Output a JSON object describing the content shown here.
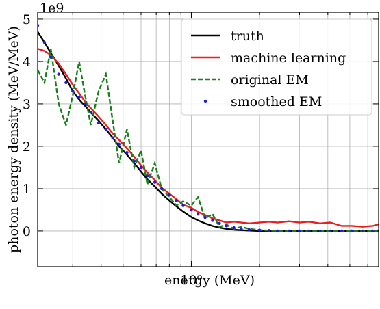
{
  "chart_data": {
    "type": "line",
    "xlabel": "energy (MeV)",
    "ylabel": "photon energy density (MeV/MeV)",
    "y_offset_text": "1e9",
    "xscale": "log",
    "xlim": [
      0.21,
      6.7
    ],
    "ylim": [
      -0.84,
      5.16
    ],
    "xticks": [
      {
        "value": 1,
        "label": "10⁰"
      }
    ],
    "xminorticks": [
      0.3,
      0.4,
      0.5,
      0.6,
      0.7,
      0.8,
      0.9,
      2,
      3,
      4,
      5,
      6
    ],
    "yticks": [
      0,
      1,
      2,
      3,
      4,
      5
    ],
    "grid": true,
    "legend": "upper right",
    "x": [
      0.21,
      0.225,
      0.24,
      0.26,
      0.28,
      0.3,
      0.32,
      0.34,
      0.36,
      0.39,
      0.42,
      0.45,
      0.48,
      0.52,
      0.56,
      0.6,
      0.64,
      0.69,
      0.74,
      0.8,
      0.86,
      0.92,
      1.0,
      1.07,
      1.15,
      1.24,
      1.33,
      1.43,
      1.54,
      1.66,
      1.8,
      2.0,
      2.2,
      2.4,
      2.7,
      3.0,
      3.3,
      3.7,
      4.1,
      4.6,
      5.1,
      5.7,
      6.3,
      6.7
    ],
    "series": [
      {
        "name": "truth",
        "color": "#000000",
        "style": "solid",
        "values": [
          4.7,
          4.45,
          4.2,
          3.9,
          3.6,
          3.3,
          3.1,
          2.95,
          2.8,
          2.6,
          2.4,
          2.2,
          2.0,
          1.8,
          1.6,
          1.4,
          1.22,
          1.05,
          0.88,
          0.72,
          0.58,
          0.46,
          0.33,
          0.25,
          0.18,
          0.12,
          0.08,
          0.05,
          0.03,
          0.02,
          0.01,
          0,
          0,
          0,
          0,
          0,
          0,
          0,
          0,
          0,
          0,
          0,
          0,
          0
        ]
      },
      {
        "name": "machine learning",
        "color": "#ee1c1c",
        "style": "solid",
        "values": [
          4.3,
          4.25,
          4.15,
          3.95,
          3.7,
          3.45,
          3.25,
          3.05,
          2.9,
          2.7,
          2.5,
          2.3,
          2.15,
          1.95,
          1.75,
          1.55,
          1.38,
          1.2,
          1.02,
          0.88,
          0.75,
          0.62,
          0.55,
          0.45,
          0.38,
          0.3,
          0.25,
          0.2,
          0.22,
          0.2,
          0.18,
          0.2,
          0.22,
          0.2,
          0.23,
          0.2,
          0.22,
          0.18,
          0.2,
          0.12,
          0.12,
          0.1,
          0.12,
          0.16
        ]
      },
      {
        "name": "original EM",
        "color": "#1a7f1a",
        "style": "dashed",
        "values": [
          3.8,
          3.5,
          4.3,
          3.0,
          2.5,
          3.2,
          4.0,
          3.2,
          2.5,
          3.3,
          3.7,
          2.6,
          1.6,
          2.4,
          1.5,
          1.9,
          1.1,
          1.6,
          1.0,
          0.8,
          0.6,
          0.7,
          0.6,
          0.8,
          0.3,
          0.4,
          0.1,
          0.15,
          0.05,
          0.1,
          0.05,
          0.02,
          0.01,
          0,
          0,
          0,
          0,
          0,
          0,
          0,
          0,
          0,
          0,
          0
        ]
      },
      {
        "name": "smoothed EM",
        "color": "#1a1aee",
        "style": "dots",
        "values": [
          4.85,
          4.45,
          4.1,
          3.7,
          3.5,
          3.3,
          3.15,
          3.0,
          2.8,
          2.55,
          2.4,
          2.2,
          2.05,
          1.85,
          1.65,
          1.5,
          1.3,
          1.15,
          1.0,
          0.85,
          0.72,
          0.6,
          0.5,
          0.4,
          0.32,
          0.25,
          0.18,
          0.12,
          0.08,
          0.05,
          0.03,
          0.02,
          0.01,
          0,
          0,
          0,
          0,
          0,
          0,
          0,
          0,
          0,
          0,
          0
        ]
      }
    ]
  }
}
